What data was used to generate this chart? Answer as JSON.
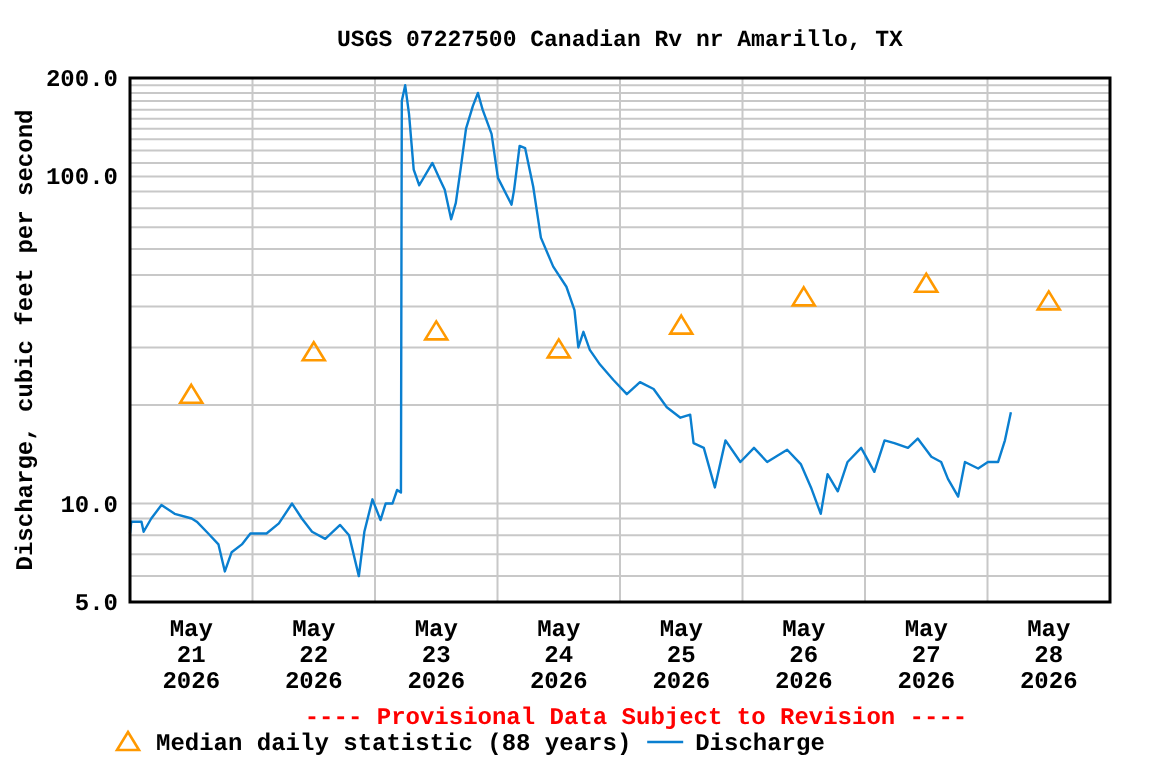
{
  "chart_data": {
    "type": "line",
    "title": "USGS 07227500 Canadian Rv nr Amarillo, TX",
    "ylabel": "Discharge, cubic feet per second",
    "log": "y",
    "grid": true,
    "legend": "bottom",
    "annotations": [
      "---- Provisional Data Subject to Revision ----"
    ],
    "xlim": [
      "2026-05-21T00:00",
      "2026-05-29T00:00"
    ],
    "xticks": [
      {
        "value": "2026-05-21T12:00",
        "label": "May 21 2026"
      },
      {
        "value": "2026-05-22T12:00",
        "label": "May 22 2026"
      },
      {
        "value": "2026-05-23T12:00",
        "label": "May 23 2026"
      },
      {
        "value": "2026-05-24T12:00",
        "label": "May 24 2026"
      },
      {
        "value": "2026-05-25T12:00",
        "label": "May 25 2026"
      },
      {
        "value": "2026-05-26T12:00",
        "label": "May 26 2026"
      },
      {
        "value": "2026-05-27T12:00",
        "label": "May 27 2026"
      },
      {
        "value": "2026-05-28T12:00",
        "label": "May 28 2026"
      },
      {
        "value": "2026-05-22T00:00",
        "label": null
      },
      {
        "value": "2026-05-23T00:00",
        "label": null
      },
      {
        "value": "2026-05-24T00:00",
        "label": null
      },
      {
        "value": "2026-05-25T00:00",
        "label": null
      },
      {
        "value": "2026-05-26T00:00",
        "label": null
      },
      {
        "value": "2026-05-27T00:00",
        "label": null
      },
      {
        "value": "2026-05-28T00:00",
        "label": null
      }
    ],
    "ylim": [
      5,
      200
    ],
    "yticks": [
      {
        "value": 5,
        "label": "5.0"
      },
      {
        "value": 10,
        "label": "10.0"
      },
      {
        "value": 100,
        "label": "100.0"
      },
      {
        "value": 200,
        "label": "200.0"
      },
      {
        "value": 6,
        "label": null
      },
      {
        "value": 7,
        "label": null
      },
      {
        "value": 8,
        "label": null
      },
      {
        "value": 9,
        "label": null
      },
      {
        "value": 20,
        "label": null
      },
      {
        "value": 30,
        "label": null
      },
      {
        "value": 40,
        "label": null
      },
      {
        "value": 50,
        "label": null
      },
      {
        "value": 60,
        "label": null
      },
      {
        "value": 70,
        "label": null
      },
      {
        "value": 80,
        "label": null
      },
      {
        "value": 90,
        "label": null
      },
      {
        "value": 110,
        "label": null
      },
      {
        "value": 120,
        "label": null
      },
      {
        "value": 130,
        "label": null
      },
      {
        "value": 140,
        "label": null
      },
      {
        "value": 150,
        "label": null
      },
      {
        "value": 160,
        "label": null
      },
      {
        "value": 170,
        "label": null
      },
      {
        "value": 180,
        "label": null
      },
      {
        "value": 190,
        "label": null
      }
    ],
    "series": [
      {
        "name": "Median daily statistic (88 years)",
        "type": "scatter",
        "marker": "triangle",
        "color": "#ff9900",
        "x": [
          "2026-05-21T12:00",
          "2026-05-22T12:00",
          "2026-05-23T12:00",
          "2026-05-24T12:00",
          "2026-05-25T12:00",
          "2026-05-26T12:00",
          "2026-05-27T12:00",
          "2026-05-28T12:00"
        ],
        "values": [
          21.5,
          29,
          33.6,
          29.6,
          35,
          42.7,
          47,
          41.5
        ]
      },
      {
        "name": "Discharge",
        "marker": "none",
        "line_style": "solid",
        "color": "#0a7fd0",
        "x": [
          "2026-05-21T00:00",
          "2026-05-21T00:15",
          "2026-05-21T02:15",
          "2026-05-21T02:40",
          "2026-05-21T04:10",
          "2026-05-21T06:10",
          "2026-05-21T08:45",
          "2026-05-21T12:05",
          "2026-05-21T13:05",
          "2026-05-21T15:20",
          "2026-05-21T17:20",
          "2026-05-21T18:35",
          "2026-05-21T19:55",
          "2026-05-21T21:55",
          "2026-05-21T23:35",
          "2026-05-22T02:45",
          "2026-05-22T05:10",
          "2026-05-22T07:45",
          "2026-05-22T09:40",
          "2026-05-22T11:40",
          "2026-05-22T14:15",
          "2026-05-22T17:10",
          "2026-05-22T18:55",
          "2026-05-22T20:50",
          "2026-05-22T21:55",
          "2026-05-22T23:30",
          "2026-05-23T01:05",
          "2026-05-23T02:05",
          "2026-05-23T03:25",
          "2026-05-23T04:20",
          "2026-05-23T05:05",
          "2026-05-23T05:15",
          "2026-05-23T05:55",
          "2026-05-23T06:40",
          "2026-05-23T07:35",
          "2026-05-23T08:40",
          "2026-05-23T11:15",
          "2026-05-23T12:35",
          "2026-05-23T13:40",
          "2026-05-23T14:55",
          "2026-05-23T15:50",
          "2026-05-23T16:50",
          "2026-05-23T17:50",
          "2026-05-23T19:10",
          "2026-05-23T20:10",
          "2026-05-23T21:05",
          "2026-05-23T22:50",
          "2026-05-24T00:05",
          "2026-05-24T02:45",
          "2026-05-24T03:15",
          "2026-05-24T04:20",
          "2026-05-24T05:25",
          "2026-05-24T07:00",
          "2026-05-24T08:30",
          "2026-05-24T10:55",
          "2026-05-24T13:30",
          "2026-05-24T15:05",
          "2026-05-24T15:50",
          "2026-05-24T16:50",
          "2026-05-24T18:05",
          "2026-05-24T20:05",
          "2026-05-24T22:40",
          "2026-05-25T01:20",
          "2026-05-25T03:55",
          "2026-05-25T06:35",
          "2026-05-25T09:10",
          "2026-05-25T11:50",
          "2026-05-25T13:45",
          "2026-05-25T14:25",
          "2026-05-25T16:25",
          "2026-05-25T18:35",
          "2026-05-25T20:40",
          "2026-05-25T23:35",
          "2026-05-26T02:15",
          "2026-05-26T04:50",
          "2026-05-26T08:45",
          "2026-05-26T11:25",
          "2026-05-26T13:25",
          "2026-05-26T15:20",
          "2026-05-26T16:40",
          "2026-05-26T18:40",
          "2026-05-26T20:35",
          "2026-05-26T23:15",
          "2026-05-27T01:50",
          "2026-05-27T03:50",
          "2026-05-27T05:45",
          "2026-05-27T08:25",
          "2026-05-27T10:20",
          "2026-05-27T13:00",
          "2026-05-27T14:55",
          "2026-05-27T16:15",
          "2026-05-27T18:15",
          "2026-05-27T19:35",
          "2026-05-27T22:10",
          "2026-05-28T00:05",
          "2026-05-28T02:05",
          "2026-05-28T03:25",
          "2026-05-28T04:35"
        ],
        "values": [
          8.1,
          8.8,
          8.8,
          8.2,
          9,
          9.9,
          9.3,
          9,
          8.8,
          8.1,
          7.5,
          6.2,
          7.1,
          7.5,
          8.1,
          8.1,
          8.7,
          10,
          9,
          8.2,
          7.8,
          8.6,
          8,
          6,
          8.2,
          10.3,
          8.9,
          10,
          10,
          11,
          10.8,
          170,
          190,
          155,
          105,
          94,
          110,
          99,
          91,
          74,
          83,
          107,
          140,
          164,
          180,
          160,
          135,
          99,
          82,
          91,
          124,
          122,
          93,
          65,
          53,
          46,
          39,
          30,
          33.5,
          29.5,
          26.6,
          23.9,
          21.6,
          23.5,
          22.4,
          19.7,
          18.3,
          18.7,
          15.3,
          14.8,
          11.2,
          15.6,
          13.4,
          14.8,
          13.4,
          14.6,
          13.2,
          11.2,
          9.3,
          12.3,
          10.9,
          13.4,
          14.8,
          12.5,
          15.6,
          15.3,
          14.8,
          15.8,
          13.9,
          13.4,
          11.9,
          10.5,
          13.4,
          12.8,
          13.4,
          13.4,
          15.6,
          19
        ]
      }
    ]
  }
}
